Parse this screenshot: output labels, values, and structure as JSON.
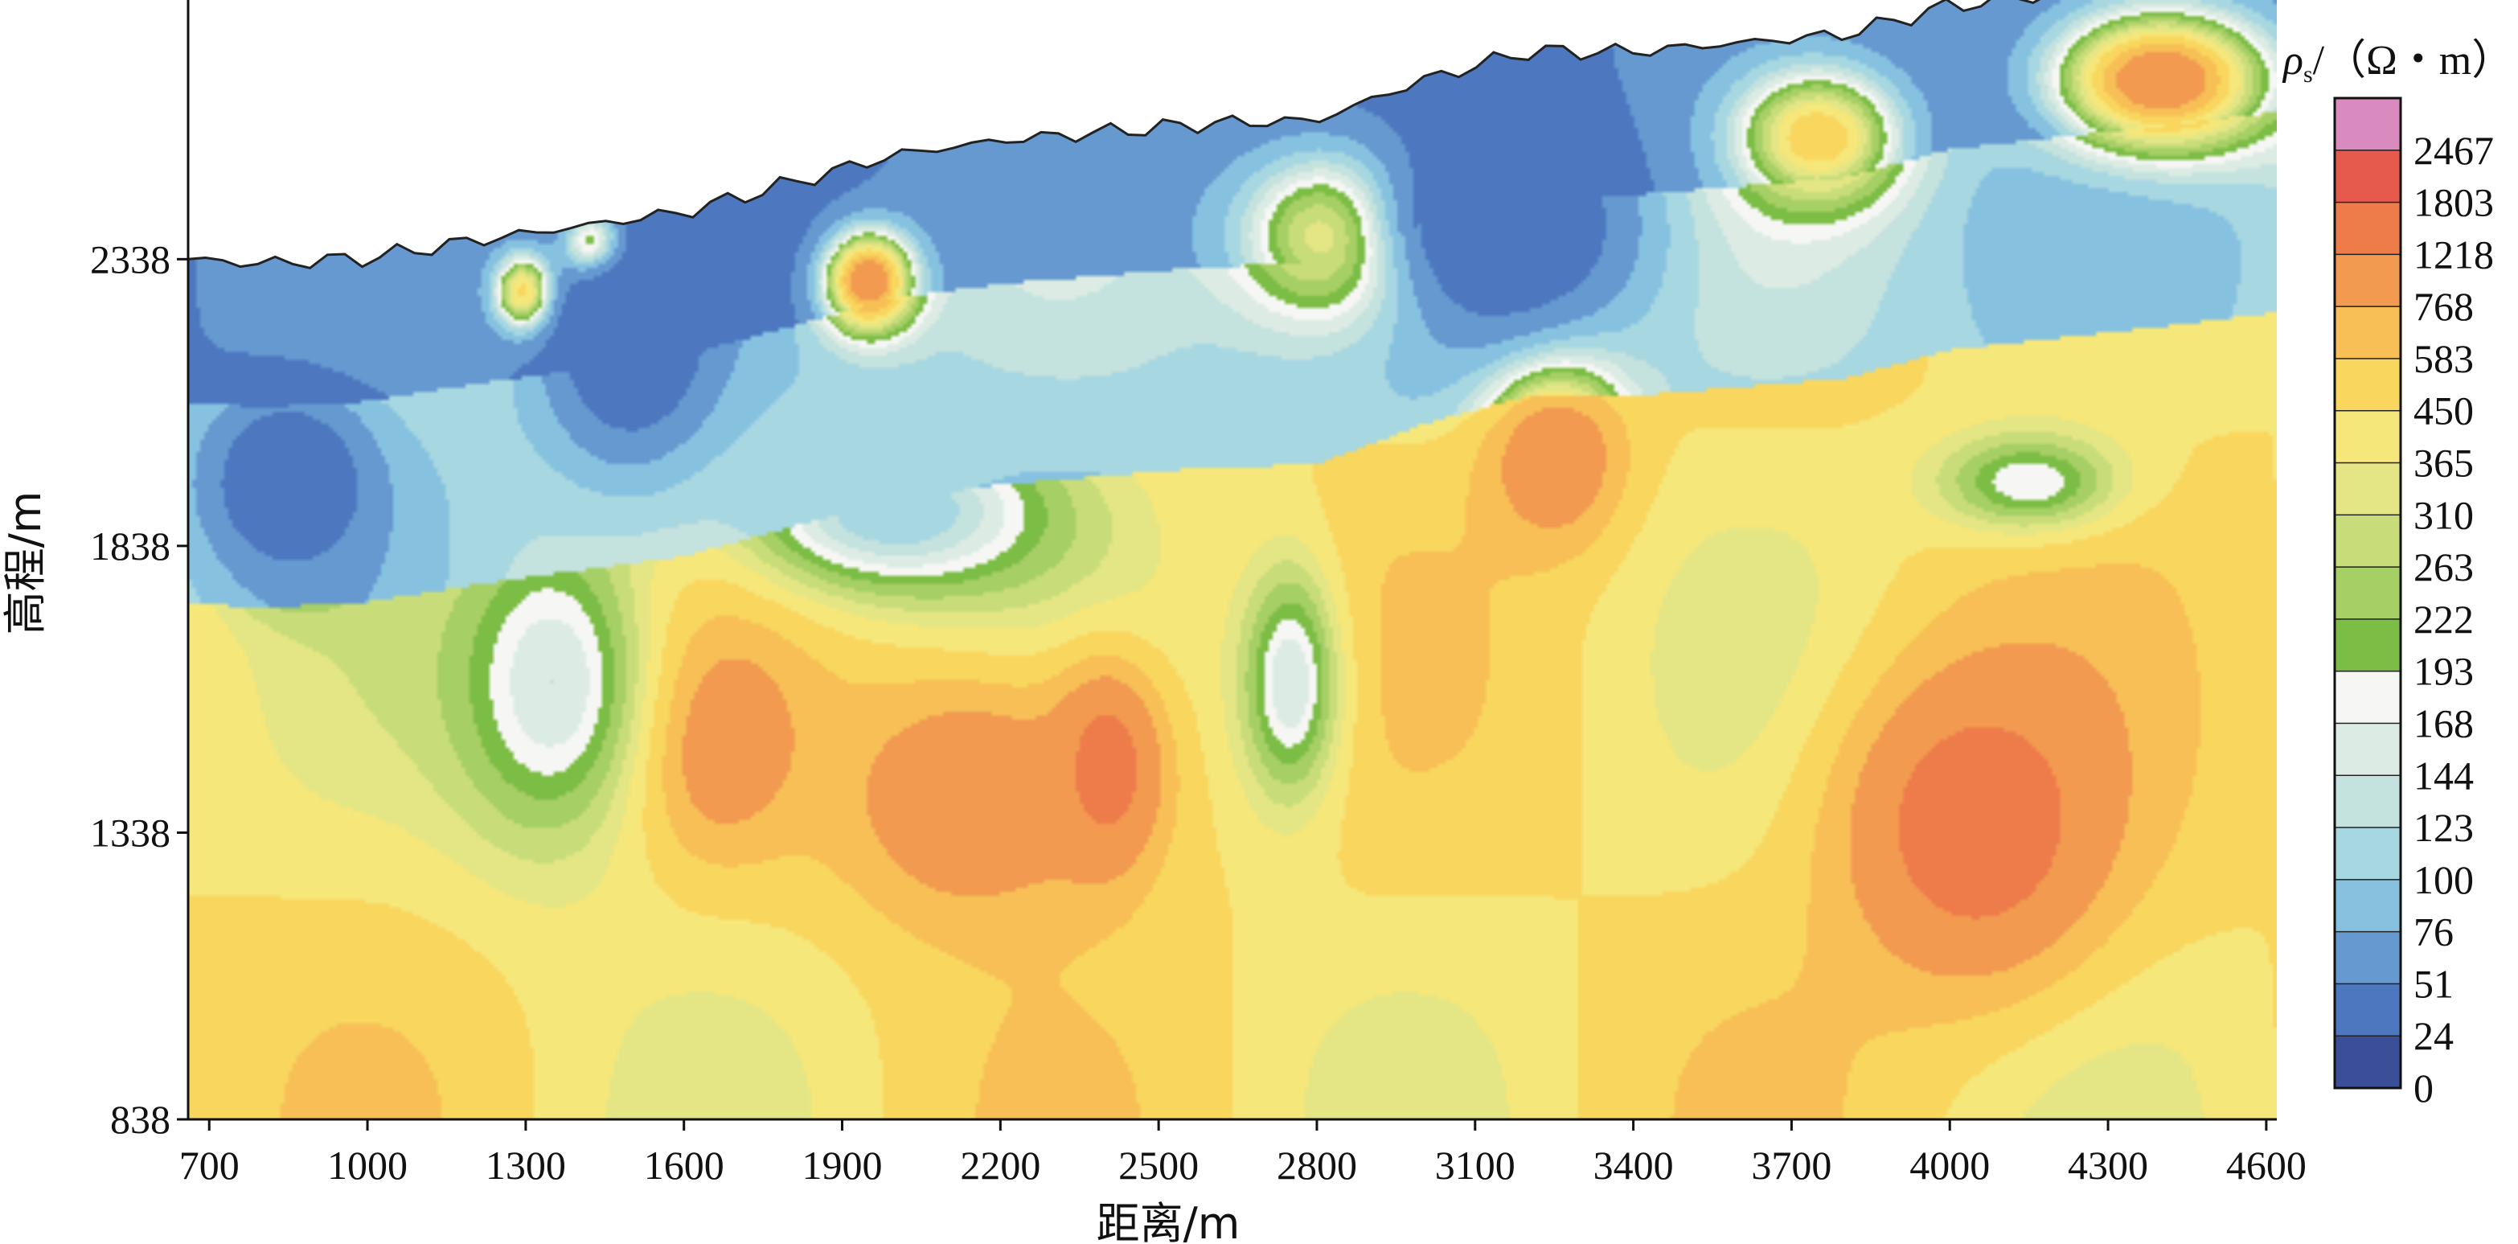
{
  "chart_data": {
    "type": "heatmap",
    "title": "",
    "xlabel": "距离/m",
    "ylabel": "高程/m",
    "x_ticks": [
      "700",
      "1000",
      "1300",
      "1600",
      "1900",
      "2200",
      "2500",
      "2800",
      "3100",
      "3400",
      "3700",
      "4000",
      "4300",
      "4600"
    ],
    "y_ticks": [
      "2338",
      "1838",
      "1338",
      "838"
    ],
    "xlim": [
      660,
      4620
    ],
    "ylim": [
      838,
      2790
    ],
    "colorbar": {
      "title_symbol": "ρ",
      "title_subscript": "s",
      "title_rest": "/（Ω・m）",
      "levels": [
        "2467",
        "1803",
        "1218",
        "768",
        "583",
        "450",
        "365",
        "310",
        "263",
        "222",
        "193",
        "168",
        "144",
        "123",
        "100",
        "76",
        "51",
        "24",
        "0"
      ],
      "colors": [
        "#d98bc0",
        "#e65a4e",
        "#ee7b4a",
        "#f29a50",
        "#f7bf56",
        "#f9d65e",
        "#f6e77a",
        "#e4e685",
        "#c8dd7a",
        "#a6cf66",
        "#7cbd45",
        "#f6f7f4",
        "#dcece4",
        "#c4e2de",
        "#a7d7e1",
        "#86c2e0",
        "#6699d0",
        "#4d78c0",
        "#3b4f98"
      ],
      "layer_color_order_low_to_high": [
        "#3b4f98",
        "#4d78c0",
        "#6699d0",
        "#86c2e0",
        "#a7d7e1",
        "#c4e2de",
        "#dcece4",
        "#f6f7f4",
        "#7cbd45",
        "#a6cf66",
        "#c8dd7a",
        "#e4e685",
        "#f6e77a",
        "#f9d65e",
        "#f7bf56",
        "#f29a50",
        "#ee7b4a",
        "#e65a4e",
        "#d98bc0"
      ]
    },
    "surface_elevation": {
      "x": [
        660,
        800,
        1000,
        1200,
        1400,
        1600,
        1800,
        2000,
        2200,
        2400,
        2600,
        2800,
        3000,
        3200,
        3400,
        3600,
        3800,
        4000,
        4200,
        4400,
        4620
      ],
      "y": [
        2338,
        2330,
        2340,
        2370,
        2395,
        2420,
        2470,
        2520,
        2545,
        2560,
        2575,
        2580,
        2650,
        2700,
        2700,
        2715,
        2730,
        2780,
        2800,
        2820,
        2845
      ]
    },
    "anomalies": [
      {
        "x": 4050,
        "y": 1350,
        "value": 1803,
        "sx": 260,
        "sy": 280
      },
      {
        "x": 2400,
        "y": 1450,
        "value": 1803,
        "sx": 110,
        "sy": 180
      },
      {
        "x": 2150,
        "y": 1400,
        "value": 1218,
        "sx": 250,
        "sy": 220
      },
      {
        "x": 1650,
        "y": 1500,
        "value": 1218,
        "sx": 150,
        "sy": 180
      },
      {
        "x": 3250,
        "y": 2000,
        "value": 1218,
        "sx": 130,
        "sy": 160
      },
      {
        "x": 1950,
        "y": 2300,
        "value": 1218,
        "sx": 90,
        "sy": 90
      },
      {
        "x": 1300,
        "y": 2280,
        "value": 768,
        "sx": 60,
        "sy": 70
      },
      {
        "x": 1430,
        "y": 2360,
        "value": 768,
        "sx": 60,
        "sy": 60
      },
      {
        "x": 2850,
        "y": 2380,
        "value": 583,
        "sx": 200,
        "sy": 160
      },
      {
        "x": 4400,
        "y": 2650,
        "value": 1218,
        "sx": 220,
        "sy": 130
      },
      {
        "x": 3750,
        "y": 2550,
        "value": 583,
        "sx": 160,
        "sy": 120
      },
      {
        "x": 1350,
        "y": 1600,
        "value": 144,
        "sx": 200,
        "sy": 300
      },
      {
        "x": 2750,
        "y": 1600,
        "value": 144,
        "sx": 100,
        "sy": 220
      },
      {
        "x": 4150,
        "y": 1950,
        "value": 168,
        "sx": 180,
        "sy": 90
      },
      {
        "x": 1500,
        "y": 2200,
        "value": 24,
        "sx": 150,
        "sy": 200
      },
      {
        "x": 3150,
        "y": 2400,
        "value": 24,
        "sx": 250,
        "sy": 200
      },
      {
        "x": 850,
        "y": 1950,
        "value": 24,
        "sx": 150,
        "sy": 150
      },
      {
        "x": 2000,
        "y": 1900,
        "value": 100,
        "sx": 300,
        "sy": 150
      }
    ]
  }
}
